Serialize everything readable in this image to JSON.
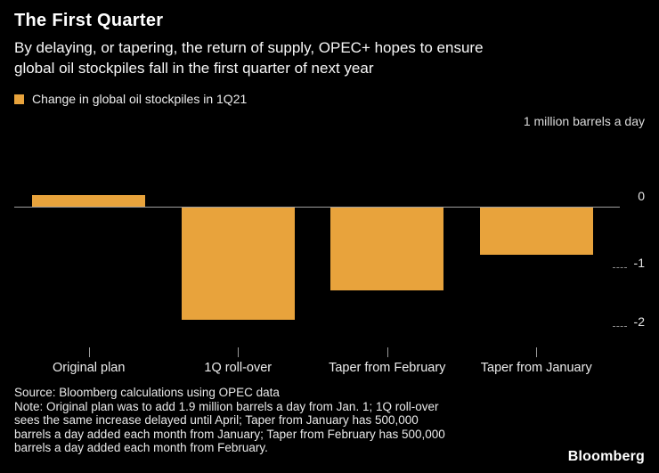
{
  "header": {
    "title": "The First Quarter",
    "subtitle_lines": [
      "By delaying, or tapering, the return of supply, OPEC+ hopes to ensure",
      "global oil stockpiles fall in the first quarter of next year"
    ]
  },
  "legend": {
    "label": "Change in global oil stockpiles in 1Q21",
    "swatch_color": "#E8A33C"
  },
  "axis": {
    "unit_label": "1 million barrels a day"
  },
  "chart_data": {
    "type": "bar",
    "title": "The First Quarter",
    "legend": "Change in global oil stockpiles in 1Q21",
    "unit": "million barrels a day",
    "categories": [
      "Original plan",
      "1Q roll-over",
      "Taper from February",
      "Taper from January"
    ],
    "values": [
      0.2,
      -1.9,
      -1.4,
      -0.8
    ],
    "yticks": [
      0,
      -1,
      -2
    ],
    "ylim": [
      -2.39,
      1.3
    ],
    "bar_color": "#E8A33C",
    "background": "#000000",
    "legend_position": "top-left",
    "grid": "solid zero line full width; short dashed ticks at -1 and -2 on right edge"
  },
  "footer": {
    "source": "Source: Bloomberg calculations using OPEC data",
    "note_lines": [
      "Note: Original plan was to add 1.9 million barrels a day from Jan. 1; 1Q roll-over",
      "sees the same increase delayed until April; Taper from January has 500,000",
      "barrels a day added each month from January; Taper from February has 500,000",
      "barrels a day added each month from February."
    ],
    "brand": "Bloomberg"
  }
}
